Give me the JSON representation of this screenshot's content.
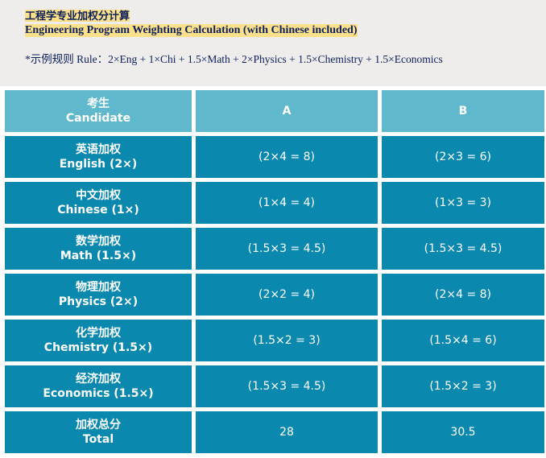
{
  "intro": {
    "title_zh": "工程学专业加权分计算",
    "title_en": "Engineering Program Weighting Calculation (with Chinese included)",
    "rule": "*示例规则 Rule：2×Eng + 1×Chi + 1.5×Math + 2×Physics + 1.5×Chemistry + 1.5×Economics"
  },
  "colors": {
    "header": "#5fb8cb",
    "body": "#0a88ad",
    "highlight": "#fde18a"
  },
  "table": {
    "header": {
      "zh": "考生",
      "en": "Candidate",
      "a": "A",
      "b": "B"
    },
    "rows": [
      {
        "zh": "英语加权",
        "en": "English (2×)",
        "a": "(2×4 = 8)",
        "b": "(2×3 = 6)"
      },
      {
        "zh": "中文加权",
        "en": "Chinese (1×)",
        "a": "(1×4 = 4)",
        "b": "(1×3 = 3)"
      },
      {
        "zh": "数学加权",
        "en": "Math (1.5×)",
        "a": "(1.5×3 = 4.5)",
        "b": "(1.5×3 = 4.5)"
      },
      {
        "zh": "物理加权",
        "en": "Physics (2×)",
        "a": "(2×2 = 4)",
        "b": "(2×4 = 8)"
      },
      {
        "zh": "化学加权",
        "en": "Chemistry (1.5×)",
        "a": "(1.5×2 = 3)",
        "b": "(1.5×4 = 6)"
      },
      {
        "zh": "经济加权",
        "en": "Economics (1.5×)",
        "a": "(1.5×3 = 4.5)",
        "b": "(1.5×2 = 3)"
      },
      {
        "zh": "加权总分",
        "en": "Total",
        "a": "28",
        "b": "30.5"
      }
    ]
  }
}
